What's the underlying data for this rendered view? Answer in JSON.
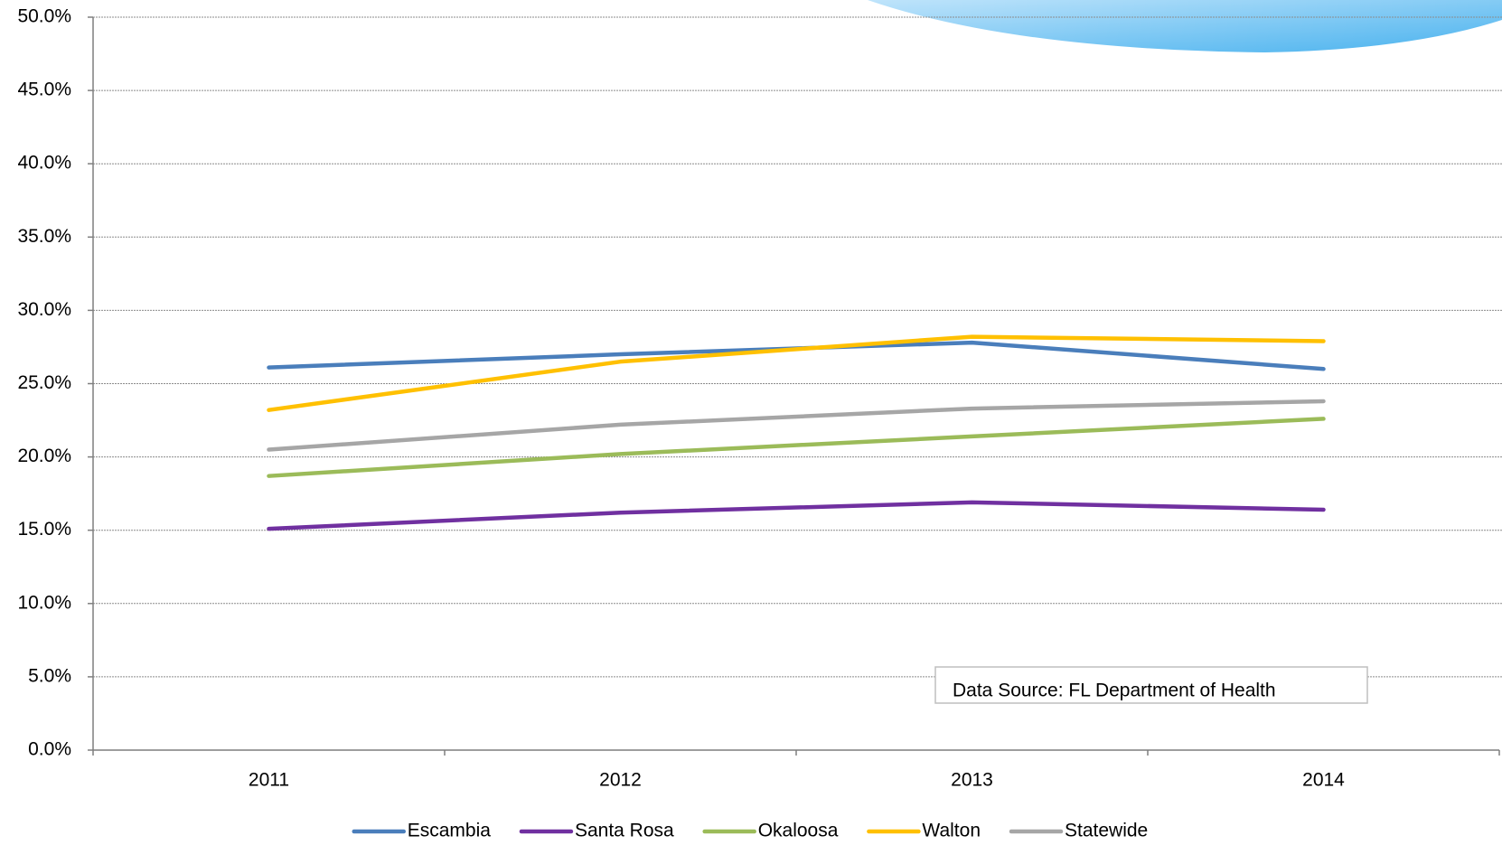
{
  "chart_data": {
    "type": "line",
    "categories": [
      "2011",
      "2012",
      "2013",
      "2014"
    ],
    "series": [
      {
        "name": "Escambia",
        "color": "#4a7ebb",
        "values": [
          26.1,
          27.0,
          27.8,
          26.0
        ]
      },
      {
        "name": "Santa Rosa",
        "color": "#7030a0",
        "values": [
          15.1,
          16.2,
          16.9,
          16.4
        ]
      },
      {
        "name": "Okaloosa",
        "color": "#9bbb59",
        "values": [
          18.7,
          20.2,
          21.4,
          22.6
        ]
      },
      {
        "name": "Walton",
        "color": "#ffc000",
        "values": [
          23.2,
          26.5,
          28.2,
          27.9
        ]
      },
      {
        "name": "Statewide",
        "color": "#a6a6a6",
        "values": [
          20.5,
          22.2,
          23.3,
          23.8
        ]
      }
    ],
    "ylim": [
      0,
      50
    ],
    "yticks": [
      {
        "value": 0,
        "label": "0.0%"
      },
      {
        "value": 5,
        "label": "5.0%"
      },
      {
        "value": 10,
        "label": "10.0%"
      },
      {
        "value": 15,
        "label": "15.0%"
      },
      {
        "value": 20,
        "label": "20.0%"
      },
      {
        "value": 25,
        "label": "25.0%"
      },
      {
        "value": 30,
        "label": "30.0%"
      },
      {
        "value": 35,
        "label": "35.0%"
      },
      {
        "value": 40,
        "label": "40.0%"
      },
      {
        "value": 45,
        "label": "45.0%"
      },
      {
        "value": 50,
        "label": "50.0%"
      }
    ],
    "grid": true,
    "legend": "bottom",
    "annotation": "Data Source: FL Department of Health"
  }
}
